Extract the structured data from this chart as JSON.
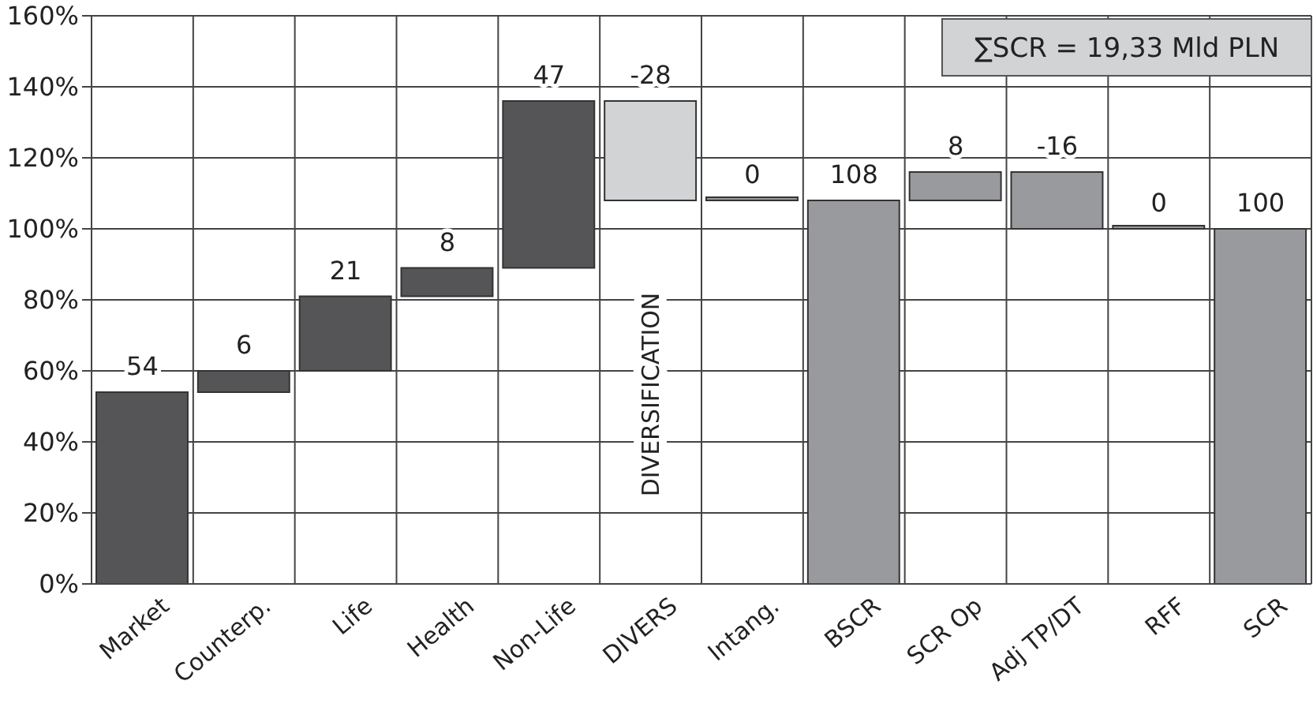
{
  "chart_data": {
    "type": "bar",
    "categories": [
      "Market",
      "Counterp.",
      "Life",
      "Health",
      "Non-Life",
      "DIVERS",
      "Intang.",
      "BSCR",
      "SCR Op",
      "Adj TP/DT",
      "RFF",
      "SCR"
    ],
    "values": [
      54,
      6,
      21,
      8,
      47,
      -28,
      0,
      108,
      8,
      -16,
      0,
      100
    ],
    "base": [
      0,
      54,
      60,
      81,
      89,
      136,
      108,
      0,
      108,
      116,
      100,
      0
    ],
    "colors": [
      "#555557",
      "#555557",
      "#555557",
      "#555557",
      "#555557",
      "#d2d3d5",
      "#999a9e",
      "#999a9e",
      "#999a9e",
      "#999a9e",
      "#999a9e",
      "#999a9e"
    ],
    "ylim": [
      0,
      160
    ],
    "yticks": [
      {
        "value": 0,
        "label": "0%"
      },
      {
        "value": 20,
        "label": "20%"
      },
      {
        "value": 40,
        "label": "40%"
      },
      {
        "value": 60,
        "label": "60%"
      },
      {
        "value": 80,
        "label": "80%"
      },
      {
        "value": 100,
        "label": "100%"
      },
      {
        "value": 120,
        "label": "120%"
      },
      {
        "value": 140,
        "label": "140%"
      },
      {
        "value": 160,
        "label": "160%"
      }
    ],
    "grid": true,
    "data_labels": true,
    "annotations": [
      "∑SCR = 19,33 Mld PLN",
      "DIVERSIFICATION"
    ]
  }
}
